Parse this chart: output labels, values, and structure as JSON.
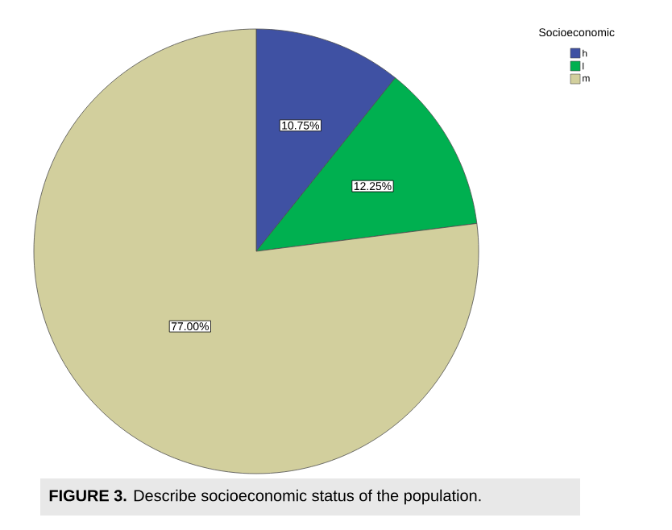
{
  "chart_data": {
    "type": "pie",
    "categories": [
      "h",
      "l",
      "m"
    ],
    "values": [
      10.75,
      12.25,
      77.0
    ],
    "colors": [
      "#3f51a3",
      "#00b050",
      "#d2cf9d"
    ],
    "value_labels": [
      "10.75%",
      "12.25%",
      "77.00%"
    ],
    "legend": "top right",
    "legend_title": "Socioeconomic",
    "annotations": [
      "**FIGURE 3.** Describe socioeconomic status of the population."
    ]
  }
}
